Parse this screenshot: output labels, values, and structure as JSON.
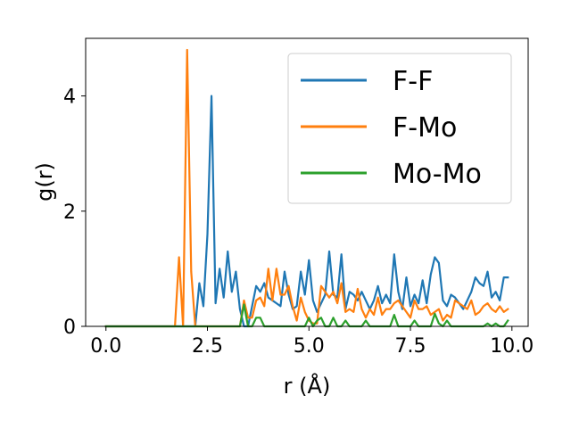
{
  "chart_data": {
    "type": "line",
    "title": "",
    "xlabel": "r (Å)",
    "ylabel": "g(r)",
    "xlim": [
      -0.5,
      10.4
    ],
    "ylim": [
      0,
      5.0
    ],
    "xticks": [
      0.0,
      2.5,
      5.0,
      7.5,
      10.0
    ],
    "xtick_labels": [
      "0.0",
      "2.5",
      "5.0",
      "7.5",
      "10.0"
    ],
    "yticks": [
      0,
      2,
      4
    ],
    "ytick_labels": [
      "0",
      "2",
      "4"
    ],
    "grid": false,
    "legend_position": "top-right",
    "x": [
      0.0,
      0.1,
      0.2,
      0.3,
      0.4,
      0.5,
      0.6,
      0.7,
      0.8,
      0.9,
      1.0,
      1.1,
      1.2,
      1.3,
      1.4,
      1.5,
      1.6,
      1.7,
      1.8,
      1.9,
      2.0,
      2.1,
      2.2,
      2.3,
      2.4,
      2.5,
      2.6,
      2.7,
      2.8,
      2.9,
      3.0,
      3.1,
      3.2,
      3.3,
      3.4,
      3.5,
      3.6,
      3.7,
      3.8,
      3.9,
      4.0,
      4.1,
      4.2,
      4.3,
      4.4,
      4.5,
      4.6,
      4.7,
      4.8,
      4.9,
      5.0,
      5.1,
      5.2,
      5.3,
      5.4,
      5.5,
      5.6,
      5.7,
      5.8,
      5.9,
      6.0,
      6.1,
      6.2,
      6.3,
      6.4,
      6.5,
      6.6,
      6.7,
      6.8,
      6.9,
      7.0,
      7.1,
      7.2,
      7.3,
      7.4,
      7.5,
      7.6,
      7.7,
      7.8,
      7.9,
      8.0,
      8.1,
      8.2,
      8.3,
      8.4,
      8.5,
      8.6,
      8.7,
      8.8,
      8.9,
      9.0,
      9.1,
      9.2,
      9.3,
      9.4,
      9.5,
      9.6,
      9.7,
      9.8,
      9.9
    ],
    "series": [
      {
        "name": "F-F",
        "color": "#1f77b4",
        "values": [
          0,
          0,
          0,
          0,
          0,
          0,
          0,
          0,
          0,
          0,
          0,
          0,
          0,
          0,
          0,
          0,
          0,
          0,
          0,
          0,
          0,
          0,
          0,
          0.75,
          0.35,
          1.6,
          4.0,
          0.4,
          1.0,
          0.5,
          1.3,
          0.6,
          0.95,
          0.3,
          0,
          0,
          0.35,
          0.7,
          0.6,
          0.75,
          0.5,
          0.45,
          0.4,
          0.35,
          0.95,
          0.55,
          0.3,
          0.35,
          0.95,
          0.55,
          1.15,
          0.45,
          0.25,
          0.4,
          0.55,
          1.3,
          0.55,
          0.5,
          1.25,
          0.3,
          0.6,
          0.55,
          0.45,
          0.6,
          0.45,
          0.3,
          0.45,
          0.7,
          0.4,
          0.55,
          0.4,
          1.25,
          0.6,
          0.3,
          0.85,
          0.35,
          0.55,
          0.4,
          0.8,
          0.4,
          0.9,
          1.2,
          1.1,
          0.45,
          0.35,
          0.55,
          0.5,
          0.4,
          0.3,
          0.45,
          0.6,
          0.85,
          0.75,
          0.7,
          0.95,
          0.5,
          0.6,
          0.45,
          0.85,
          0.85
        ]
      },
      {
        "name": "F-Mo",
        "color": "#ff7f0e",
        "values": [
          0,
          0,
          0,
          0,
          0,
          0,
          0,
          0,
          0,
          0,
          0,
          0,
          0,
          0,
          0,
          0,
          0,
          0,
          1.2,
          0,
          4.8,
          0.95,
          0,
          0,
          0,
          0,
          0,
          0,
          0,
          0,
          0,
          0,
          0,
          0,
          0.45,
          0.15,
          0.15,
          0.45,
          0.5,
          0.35,
          1.0,
          0.45,
          1.0,
          0.55,
          0.55,
          0.7,
          0.35,
          0.1,
          0.5,
          0.25,
          0.1,
          0.05,
          0.05,
          0.7,
          0.6,
          0.5,
          0.6,
          0.4,
          0.75,
          0.25,
          0.3,
          0.25,
          0.65,
          0.3,
          0.15,
          0.3,
          0.2,
          0.5,
          0.2,
          0.3,
          0.3,
          0.4,
          0.45,
          0.35,
          0.25,
          0.15,
          0.45,
          0.3,
          0.3,
          0.35,
          0.2,
          0.25,
          0.3,
          0.1,
          0.2,
          0.15,
          0.45,
          0.4,
          0.35,
          0.3,
          0.45,
          0.2,
          0.25,
          0.35,
          0.4,
          0.3,
          0.25,
          0.35,
          0.25,
          0.3
        ]
      },
      {
        "name": "Mo-Mo",
        "color": "#2ca02c",
        "values": [
          0,
          0,
          0,
          0,
          0,
          0,
          0,
          0,
          0,
          0,
          0,
          0,
          0,
          0,
          0,
          0,
          0,
          0,
          0,
          0,
          0,
          0,
          0,
          0,
          0,
          0,
          0,
          0,
          0,
          0,
          0,
          0,
          0,
          0,
          0.38,
          0,
          0,
          0.15,
          0.15,
          0,
          0,
          0,
          0,
          0,
          0,
          0,
          0,
          0,
          0,
          0,
          0.15,
          0,
          0.1,
          0.15,
          0,
          0,
          0.15,
          0,
          0,
          0.1,
          0,
          0,
          0,
          0,
          0.1,
          0,
          0,
          0,
          0,
          0,
          0,
          0.2,
          0,
          0,
          0,
          0,
          0.1,
          0,
          0,
          0,
          0,
          0.22,
          0.05,
          0,
          0.1,
          0,
          0,
          0,
          0,
          0,
          0,
          0,
          0,
          0,
          0.05,
          0,
          0.05,
          0,
          0,
          0.1
        ]
      }
    ]
  }
}
